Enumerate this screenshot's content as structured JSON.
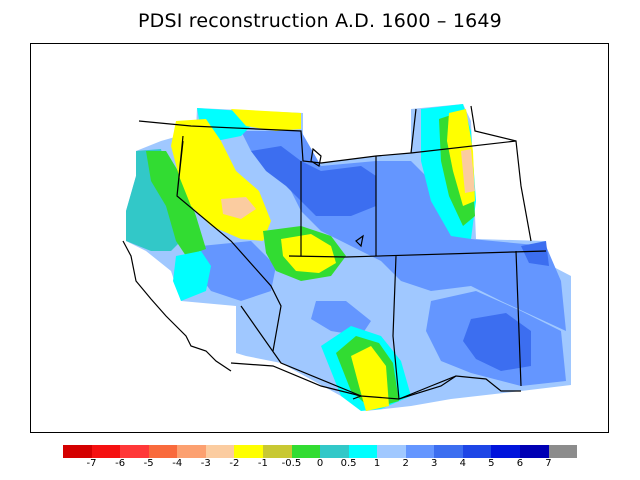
{
  "title": "PDSI reconstruction A.D. 1600 – 1649",
  "legend": {
    "colors": [
      "#d40000",
      "#f51010",
      "#ff3838",
      "#f96a3c",
      "#fca070",
      "#fbcca0",
      "#ffff00",
      "#c8c832",
      "#32dc32",
      "#32c8c8",
      "#00ffff",
      "#a0c8ff",
      "#6496ff",
      "#3c6ef0",
      "#1e46e6",
      "#0014dc",
      "#0000b4",
      "#8c8c8c"
    ],
    "labels": [
      "-7",
      "-6",
      "-5",
      "-4",
      "-3",
      "-2",
      "-1",
      "-0.5",
      "0",
      "0.5",
      "1",
      "2",
      "3",
      "4",
      "5",
      "6",
      "7"
    ]
  },
  "fill_colors": {
    "wet_light": "#a0c8ff",
    "wet_mid": "#6496ff",
    "wet_strong": "#3c6ef0",
    "cyan": "#00ffff",
    "teal": "#32c8c8",
    "green": "#32dc32",
    "yellow": "#ffff00",
    "peach": "#fbcca0"
  }
}
